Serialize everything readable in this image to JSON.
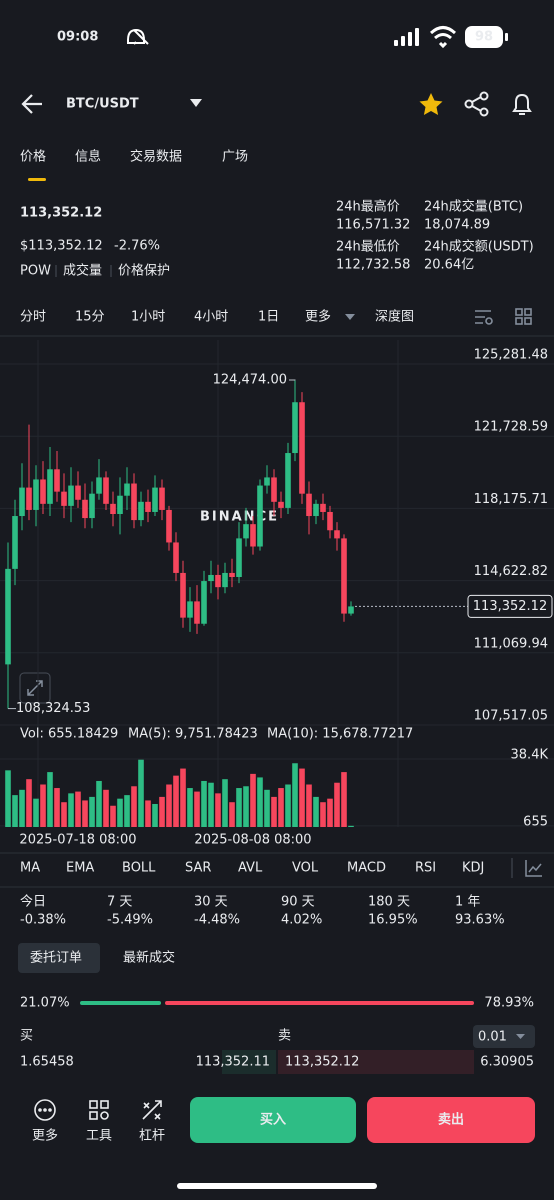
{
  "status": {
    "time": "09:08",
    "battery": "98"
  },
  "header": {
    "pair": "BTC/USDT"
  },
  "tabs": [
    "价格",
    "信息",
    "交易数据",
    "广场"
  ],
  "price": {
    "last": "113,352.12",
    "usd": "$113,352.12",
    "change": "-2.76%",
    "tags": [
      "POW",
      "成交量",
      "价格保护"
    ]
  },
  "stats": [
    {
      "label": "24h最高价",
      "value": "116,571.32"
    },
    {
      "label": "24h成交量(BTC)",
      "value": "18,074.89"
    },
    {
      "label": "24h最低价",
      "value": "112,732.58"
    },
    {
      "label": "24h成交额(USDT)",
      "value": "20.64亿"
    }
  ],
  "timeframes": [
    "分时",
    "15分",
    "1小时",
    "4小时",
    "1日",
    "更多",
    "深度图"
  ],
  "chart_data": {
    "type": "candlestick",
    "watermark": "BINANCE",
    "categories": [
      null,
      null,
      null,
      null,
      null,
      null,
      null,
      null,
      null,
      null,
      "2025-07-18 08:00",
      null,
      null,
      null,
      null,
      null,
      null,
      null,
      null,
      null,
      null,
      null,
      null,
      null,
      null,
      null,
      null,
      null,
      null,
      null,
      null,
      null,
      null,
      null,
      null,
      "2025-08-08 08:00",
      null,
      null,
      null,
      null,
      null,
      null,
      null,
      null,
      null,
      null,
      null,
      null,
      null,
      null
    ],
    "open": [
      110500,
      115200,
      117800,
      119200,
      118100,
      119600,
      118400,
      120100,
      119000,
      118300,
      119300,
      118600,
      117700,
      118900,
      119700,
      118400,
      117900,
      118800,
      119400,
      117600,
      118500,
      118000,
      119200,
      118100,
      116500,
      115000,
      112800,
      113600,
      112500,
      114600,
      114900,
      114300,
      115000,
      114800,
      116700,
      117400,
      116300,
      119300,
      119700,
      118500,
      118200,
      120900,
      123400,
      118900,
      117800,
      118400,
      118000,
      117100,
      116700,
      113000
    ],
    "high": [
      116500,
      118600,
      120400,
      122300,
      120300,
      120500,
      121200,
      121000,
      119900,
      120200,
      120000,
      119400,
      119500,
      120600,
      120000,
      119000,
      119700,
      120200,
      119900,
      119000,
      119100,
      119800,
      119600,
      118300,
      117000,
      115600,
      114300,
      114400,
      115100,
      115600,
      115400,
      115500,
      115700,
      117500,
      118200,
      117800,
      119600,
      120300,
      120100,
      119000,
      121400,
      124474,
      123900,
      119500,
      118600,
      118900,
      118300,
      117500,
      116900,
      113600
    ],
    "low": [
      108324.53,
      114400,
      117100,
      117600,
      117300,
      117900,
      117800,
      118500,
      117700,
      117500,
      118200,
      117200,
      117200,
      118600,
      118100,
      117300,
      116900,
      118100,
      117200,
      117300,
      117500,
      117800,
      117600,
      116100,
      114600,
      112300,
      112100,
      112000,
      112400,
      114000,
      113700,
      114000,
      114300,
      114500,
      116300,
      115900,
      116100,
      118900,
      117800,
      117700,
      117900,
      120500,
      118400,
      116900,
      117400,
      117600,
      116700,
      116100,
      112600,
      112900
    ],
    "close": [
      115200,
      117800,
      119200,
      118100,
      119600,
      118400,
      120100,
      119000,
      118300,
      119300,
      118600,
      117700,
      118900,
      119700,
      118400,
      117900,
      118800,
      119400,
      117600,
      118500,
      118000,
      119200,
      118100,
      116500,
      115000,
      112800,
      113600,
      112500,
      114600,
      114900,
      114300,
      115000,
      114800,
      116700,
      117400,
      116300,
      119300,
      119700,
      118500,
      118200,
      120900,
      123400,
      118900,
      117800,
      118400,
      118000,
      117100,
      116700,
      113000,
      113352.12
    ],
    "up_color": "#2ebd85",
    "down_color": "#f6465d",
    "ylim": [
      107517.05,
      125281.48
    ],
    "yticks": [
      {
        "value": 125281.48,
        "label": "125,281.48"
      },
      {
        "value": 121728.59,
        "label": "121,728.59"
      },
      {
        "value": 118175.71,
        "label": "118,175.71"
      },
      {
        "value": 114622.82,
        "label": "114,622.82"
      },
      {
        "value": 111069.94,
        "label": "111,069.94"
      },
      {
        "value": 107517.05,
        "label": "107,517.05"
      }
    ],
    "last_price": {
      "value": 113352.12,
      "label": "113,352.12"
    },
    "high_marker": {
      "value": 124474,
      "label": "124,474.00"
    },
    "low_marker": {
      "value": 108324.53,
      "label": "108,324.53"
    },
    "volume": {
      "label": "Vol: 655.18429",
      "ma5": "MA(5): 9,751.78423",
      "ma10": "MA(10): 15,678.77217",
      "values": [
        32000,
        18000,
        21000,
        27000,
        16000,
        24000,
        31000,
        22000,
        14000,
        19000,
        20000,
        15000,
        17000,
        26000,
        21000,
        12000,
        16000,
        18000,
        23000,
        38000,
        15000,
        13000,
        17000,
        24000,
        29000,
        33000,
        22000,
        20000,
        26000,
        25000,
        19000,
        27000,
        14000,
        22000,
        23000,
        30000,
        28000,
        21000,
        17000,
        22000,
        24000,
        36000,
        33000,
        24000,
        17000,
        14000,
        16000,
        25000,
        31000,
        655.18429
      ],
      "ylim": [
        0,
        38400
      ],
      "yticks": [
        {
          "value": 38400,
          "label": "38.4K"
        },
        655
      ]
    }
  },
  "indicators": [
    "MA",
    "EMA",
    "BOLL",
    "SAR",
    "AVL",
    "VOL",
    "MACD",
    "RSI",
    "KDJ"
  ],
  "performance": [
    {
      "period": "今日",
      "change": "-0.38%"
    },
    {
      "period": "7 天",
      "change": "-5.49%"
    },
    {
      "period": "30 天",
      "change": "-4.48%"
    },
    {
      "period": "90 天",
      "change": "4.02%"
    },
    {
      "period": "180 天",
      "change": "16.95%"
    },
    {
      "period": "1 年",
      "change": "93.63%"
    }
  ],
  "orderbook": {
    "tabs": [
      "委托订单",
      "最新成交"
    ],
    "buy_ratio": {
      "value": 21.07,
      "label": "21.07%"
    },
    "sell_ratio": {
      "value": 78.93,
      "label": "78.93%"
    },
    "bid_header": "买",
    "ask_header": "卖",
    "precision": "0.01",
    "rows": [
      {
        "bid_qty": "1.65458",
        "bid": "113,352.11",
        "ask": "113,352.12",
        "ask_qty": "6.30905"
      }
    ]
  },
  "bottom": {
    "tools": [
      "更多",
      "工具",
      "杠杆"
    ],
    "buy": "买入",
    "sell": "卖出"
  }
}
